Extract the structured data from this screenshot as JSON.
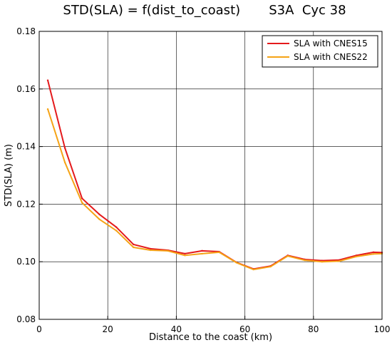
{
  "chart_data": {
    "type": "line",
    "title": "STD(SLA) = f(dist_to_coast)       S3A  Cyc 38",
    "xlabel": "Distance to the coast (km)",
    "ylabel": "STD(SLA) (m)",
    "xlim": [
      0,
      100
    ],
    "ylim": [
      0.08,
      0.18
    ],
    "xticks": [
      "0",
      "20",
      "40",
      "60",
      "80",
      "100"
    ],
    "yticks": [
      "0.08",
      "0.10",
      "0.12",
      "0.14",
      "0.16",
      "0.18"
    ],
    "grid": true,
    "legend_position": "top-right",
    "x": [
      2.5,
      7.5,
      12.5,
      17.5,
      22.5,
      27.5,
      32.5,
      37.5,
      42.5,
      47.5,
      52.5,
      57.5,
      62.5,
      67.5,
      72.5,
      77.5,
      82.5,
      87.5,
      92.5,
      97.5,
      100
    ],
    "series": [
      {
        "name": "SLA with CNES15",
        "color": "#e41a1c",
        "values": [
          0.163,
          0.1395,
          0.122,
          0.1165,
          0.112,
          0.106,
          0.1045,
          0.104,
          0.1028,
          0.1038,
          0.1035,
          0.0998,
          0.0975,
          0.0985,
          0.1022,
          0.1008,
          0.1004,
          0.1006,
          0.1022,
          0.1033,
          0.1032
        ]
      },
      {
        "name": "SLA with CNES22",
        "color": "#f5a316",
        "values": [
          0.153,
          0.1345,
          0.1205,
          0.1148,
          0.1108,
          0.105,
          0.104,
          0.1038,
          0.1022,
          0.1028,
          0.1033,
          0.0997,
          0.0973,
          0.0983,
          0.102,
          0.1005,
          0.1,
          0.1002,
          0.1018,
          0.1027,
          0.1028
        ]
      }
    ]
  }
}
